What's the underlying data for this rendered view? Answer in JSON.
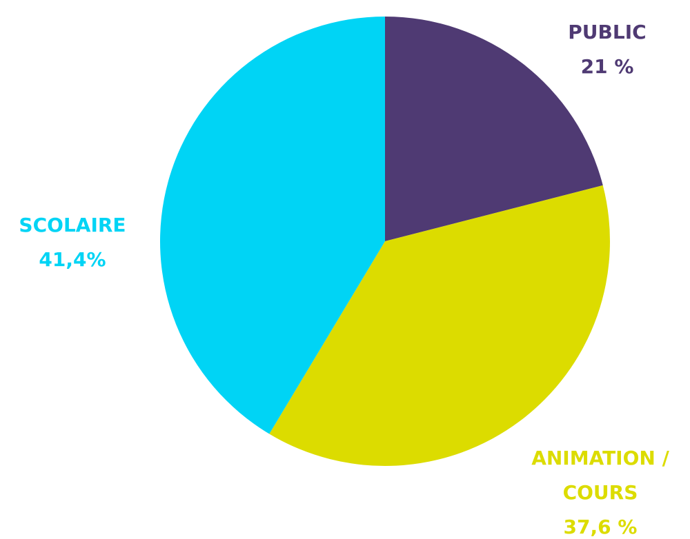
{
  "chart_data": {
    "type": "pie",
    "categories": [
      "PUBLIC",
      "ANIMATION / COURS",
      "SCOLAIRE"
    ],
    "values": [
      21,
      37.6,
      41.4
    ],
    "value_labels": [
      "21 %",
      "37,6 %",
      "41,4%"
    ],
    "colors": [
      "#4f3a73",
      "#dcdc00",
      "#00d4f5"
    ]
  }
}
